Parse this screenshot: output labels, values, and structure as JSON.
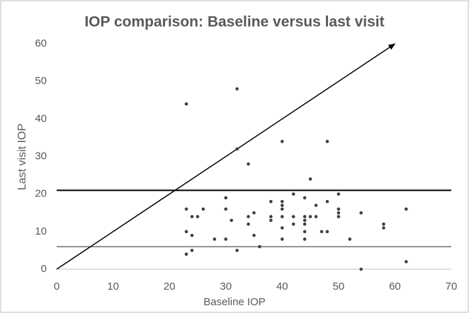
{
  "chart_data": {
    "type": "scatter",
    "title": "IOP comparison: Baseline versus last visit",
    "x_label": "Baseline IOP",
    "y_label": "Last visit IOP",
    "color": "#404040",
    "x": [
      32,
      23,
      32,
      40,
      34,
      48,
      45,
      23,
      23,
      23,
      24,
      24,
      24,
      25,
      26,
      28,
      30,
      30,
      30,
      31,
      32,
      34,
      34,
      35,
      35,
      36,
      38,
      38,
      38,
      40,
      40,
      40,
      40,
      40,
      40,
      42,
      42,
      42,
      44,
      44,
      44,
      44,
      44,
      44,
      45,
      46,
      46,
      47,
      48,
      48,
      50,
      50,
      50,
      50,
      52,
      54,
      54,
      58,
      58,
      62,
      62
    ],
    "values": [
      48,
      44,
      32,
      34,
      28,
      34,
      24,
      16,
      10,
      4,
      9,
      5,
      14,
      14,
      16,
      8,
      19,
      16,
      8,
      13,
      5,
      14,
      12,
      15,
      9,
      6,
      18,
      14,
      13,
      18,
      17,
      16,
      14,
      11,
      8,
      14,
      12,
      20,
      19,
      14,
      13,
      12,
      10,
      8,
      14,
      17,
      14,
      10,
      18,
      10,
      20,
      16,
      15,
      14,
      8,
      15,
      0,
      12,
      11,
      16,
      2
    ],
    "xlim": [
      0,
      70
    ],
    "xticks": [
      0,
      10,
      20,
      30,
      40,
      50,
      60,
      70
    ],
    "ylim": [
      0,
      60
    ],
    "yticks": [
      0,
      10,
      20,
      30,
      40,
      50,
      60
    ],
    "grid": false,
    "hlines": [
      {
        "y": 21,
        "color": "#000000",
        "width": 2
      },
      {
        "y": 6,
        "color": "#555555",
        "width": 1.2
      }
    ],
    "arrow": {
      "from": [
        0,
        0
      ],
      "to": [
        60,
        60
      ],
      "color": "#000000"
    }
  }
}
